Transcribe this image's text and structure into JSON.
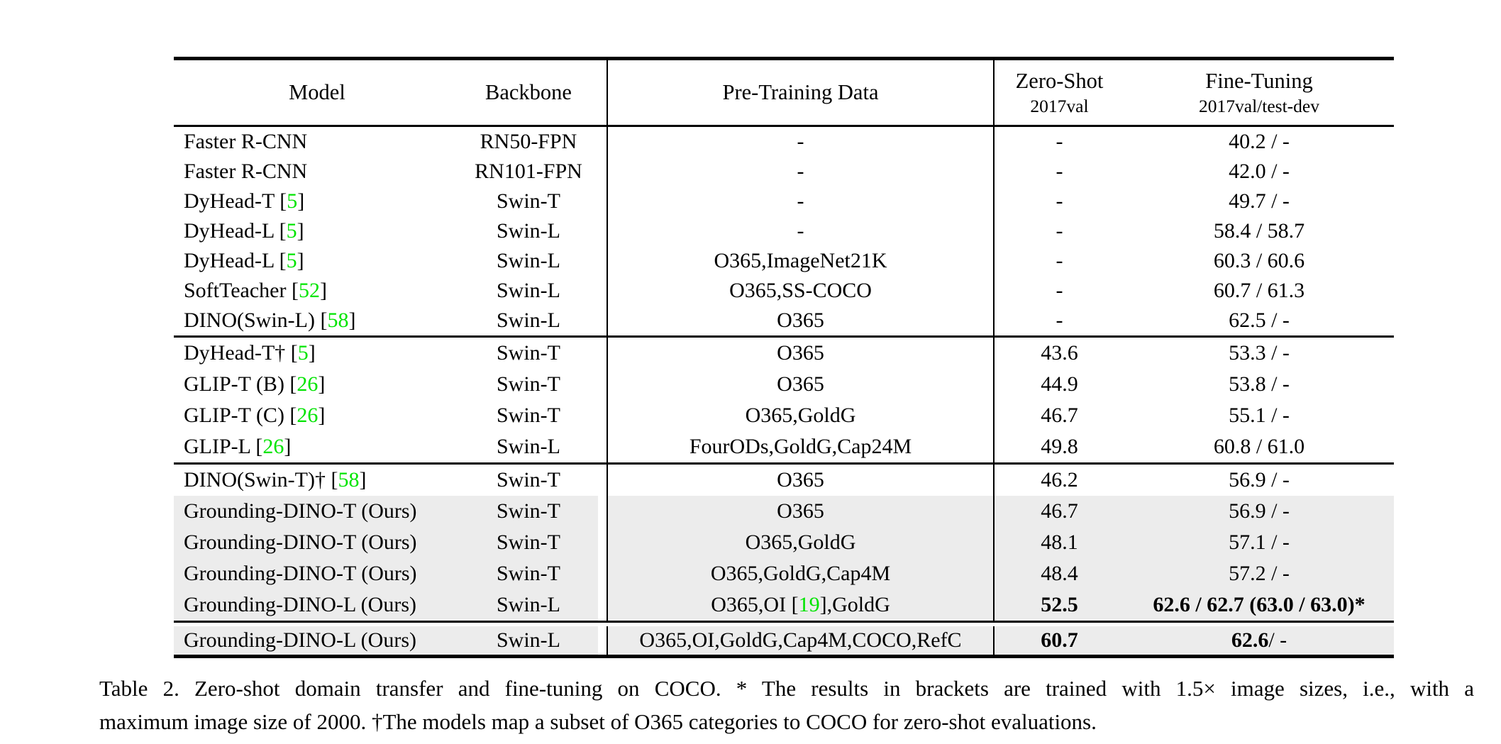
{
  "colors": {
    "citation_green": "#00e400",
    "row_highlight": "#ececec"
  },
  "table": {
    "header": {
      "model": "Model",
      "backbone": "Backbone",
      "pretraining": "Pre-Training Data",
      "zeroshot_title": "Zero-Shot",
      "zeroshot_sub": "2017val",
      "finetuning_title": "Fine-Tuning",
      "finetuning_sub": "2017val/test-dev"
    },
    "groups": [
      {
        "rows": [
          {
            "model": [
              {
                "t": "Faster R-CNN"
              }
            ],
            "backbone": "RN50-FPN",
            "pretrain": [
              {
                "t": "-"
              }
            ],
            "zeroshot": "-",
            "finetune": [
              {
                "t": "40.2 / -"
              }
            ],
            "hl": false
          },
          {
            "model": [
              {
                "t": "Faster R-CNN"
              }
            ],
            "backbone": "RN101-FPN",
            "pretrain": [
              {
                "t": "-"
              }
            ],
            "zeroshot": "-",
            "finetune": [
              {
                "t": "42.0 / -"
              }
            ],
            "hl": false
          },
          {
            "model": [
              {
                "t": "DyHead-T ["
              },
              {
                "t": "5",
                "g": true
              },
              {
                "t": "]"
              }
            ],
            "backbone": "Swin-T",
            "pretrain": [
              {
                "t": "-"
              }
            ],
            "zeroshot": "-",
            "finetune": [
              {
                "t": "49.7 / -"
              }
            ],
            "hl": false
          },
          {
            "model": [
              {
                "t": "DyHead-L ["
              },
              {
                "t": "5",
                "g": true
              },
              {
                "t": "]"
              }
            ],
            "backbone": "Swin-L",
            "pretrain": [
              {
                "t": "-"
              }
            ],
            "zeroshot": "-",
            "finetune": [
              {
                "t": "58.4 / 58.7"
              }
            ],
            "hl": false
          },
          {
            "model": [
              {
                "t": "DyHead-L ["
              },
              {
                "t": "5",
                "g": true
              },
              {
                "t": "]"
              }
            ],
            "backbone": "Swin-L",
            "pretrain": [
              {
                "t": "O365,ImageNet21K"
              }
            ],
            "zeroshot": "-",
            "finetune": [
              {
                "t": "60.3 / 60.6"
              }
            ],
            "hl": false
          },
          {
            "model": [
              {
                "t": "SoftTeacher ["
              },
              {
                "t": "52",
                "g": true
              },
              {
                "t": "]"
              }
            ],
            "backbone": "Swin-L",
            "pretrain": [
              {
                "t": "O365,SS-COCO"
              }
            ],
            "zeroshot": "-",
            "finetune": [
              {
                "t": "60.7 / 61.3"
              }
            ],
            "hl": false
          },
          {
            "model": [
              {
                "t": "DINO(Swin-L) ["
              },
              {
                "t": "58",
                "g": true
              },
              {
                "t": "]"
              }
            ],
            "backbone": "Swin-L",
            "pretrain": [
              {
                "t": "O365"
              }
            ],
            "zeroshot": "-",
            "finetune": [
              {
                "t": "62.5 / -"
              }
            ],
            "hl": false
          }
        ]
      },
      {
        "rows": [
          {
            "model": [
              {
                "t": "DyHead-T† ["
              },
              {
                "t": "5",
                "g": true
              },
              {
                "t": "]"
              }
            ],
            "backbone": "Swin-T",
            "pretrain": [
              {
                "t": "O365"
              }
            ],
            "zeroshot": "43.6",
            "finetune": [
              {
                "t": "53.3 / -"
              }
            ],
            "hl": false
          },
          {
            "model": [
              {
                "t": "GLIP-T (B) ["
              },
              {
                "t": "26",
                "g": true
              },
              {
                "t": "]"
              }
            ],
            "backbone": "Swin-T",
            "pretrain": [
              {
                "t": "O365"
              }
            ],
            "zeroshot": "44.9",
            "finetune": [
              {
                "t": "53.8 / -"
              }
            ],
            "hl": false
          },
          {
            "model": [
              {
                "t": "GLIP-T (C) ["
              },
              {
                "t": "26",
                "g": true
              },
              {
                "t": "]"
              }
            ],
            "backbone": "Swin-T",
            "pretrain": [
              {
                "t": "O365,GoldG"
              }
            ],
            "zeroshot": "46.7",
            "finetune": [
              {
                "t": "55.1 / -"
              }
            ],
            "hl": false
          },
          {
            "model": [
              {
                "t": "GLIP-L ["
              },
              {
                "t": "26",
                "g": true
              },
              {
                "t": "]"
              }
            ],
            "backbone": "Swin-L",
            "pretrain": [
              {
                "t": "FourODs,GoldG,Cap24M"
              }
            ],
            "zeroshot": "49.8",
            "finetune": [
              {
                "t": "60.8 / 61.0"
              }
            ],
            "hl": false
          }
        ]
      },
      {
        "rows": [
          {
            "model": [
              {
                "t": "DINO(Swin-T)† ["
              },
              {
                "t": "58",
                "g": true
              },
              {
                "t": "]"
              }
            ],
            "backbone": "Swin-T",
            "pretrain": [
              {
                "t": "O365"
              }
            ],
            "zeroshot": "46.2",
            "finetune": [
              {
                "t": "56.9 / -"
              }
            ],
            "hl": false
          },
          {
            "model": [
              {
                "t": "Grounding-DINO-T (Ours)"
              }
            ],
            "backbone": "Swin-T",
            "pretrain": [
              {
                "t": "O365"
              }
            ],
            "zeroshot": "46.7",
            "finetune": [
              {
                "t": "56.9 / -"
              }
            ],
            "hl": true
          },
          {
            "model": [
              {
                "t": "Grounding-DINO-T (Ours)"
              }
            ],
            "backbone": "Swin-T",
            "pretrain": [
              {
                "t": "O365,GoldG"
              }
            ],
            "zeroshot": "48.1",
            "finetune": [
              {
                "t": "57.1 / -"
              }
            ],
            "hl": true
          },
          {
            "model": [
              {
                "t": "Grounding-DINO-T (Ours)"
              }
            ],
            "backbone": "Swin-T",
            "pretrain": [
              {
                "t": "O365,GoldG,Cap4M"
              }
            ],
            "zeroshot": "48.4",
            "finetune": [
              {
                "t": "57.2 / -"
              }
            ],
            "hl": true
          },
          {
            "model": [
              {
                "t": "Grounding-DINO-L (Ours)"
              }
            ],
            "backbone": "Swin-L",
            "pretrain": [
              {
                "t": "O365,OI ["
              },
              {
                "t": "19",
                "g": true
              },
              {
                "t": "],GoldG"
              }
            ],
            "zeroshot": "52.5",
            "zs_bold": true,
            "finetune": [
              {
                "t": "62.6 / 62.7 (63.0 / 63.0)*",
                "b": true
              }
            ],
            "hl": true
          }
        ]
      },
      {
        "rows": [
          {
            "model": [
              {
                "t": "Grounding-DINO-L (Ours)"
              }
            ],
            "backbone": "Swin-L",
            "pretrain": [
              {
                "t": "O365,OI,GoldG,Cap4M,COCO,RefC"
              }
            ],
            "zeroshot": "60.7",
            "zs_bold": true,
            "finetune": [
              {
                "t": "62.6",
                "b": true
              },
              {
                "t": " / -"
              }
            ],
            "hl": true
          }
        ]
      }
    ]
  },
  "caption": {
    "line1": "Table 2.  Zero-shot domain transfer and fine-tuning on COCO. * The results in brackets are trained with 1.5× image sizes, i.e., with a",
    "line2": "maximum image size of 2000. †The models map a subset of O365 categories to COCO for zero-shot evaluations."
  }
}
